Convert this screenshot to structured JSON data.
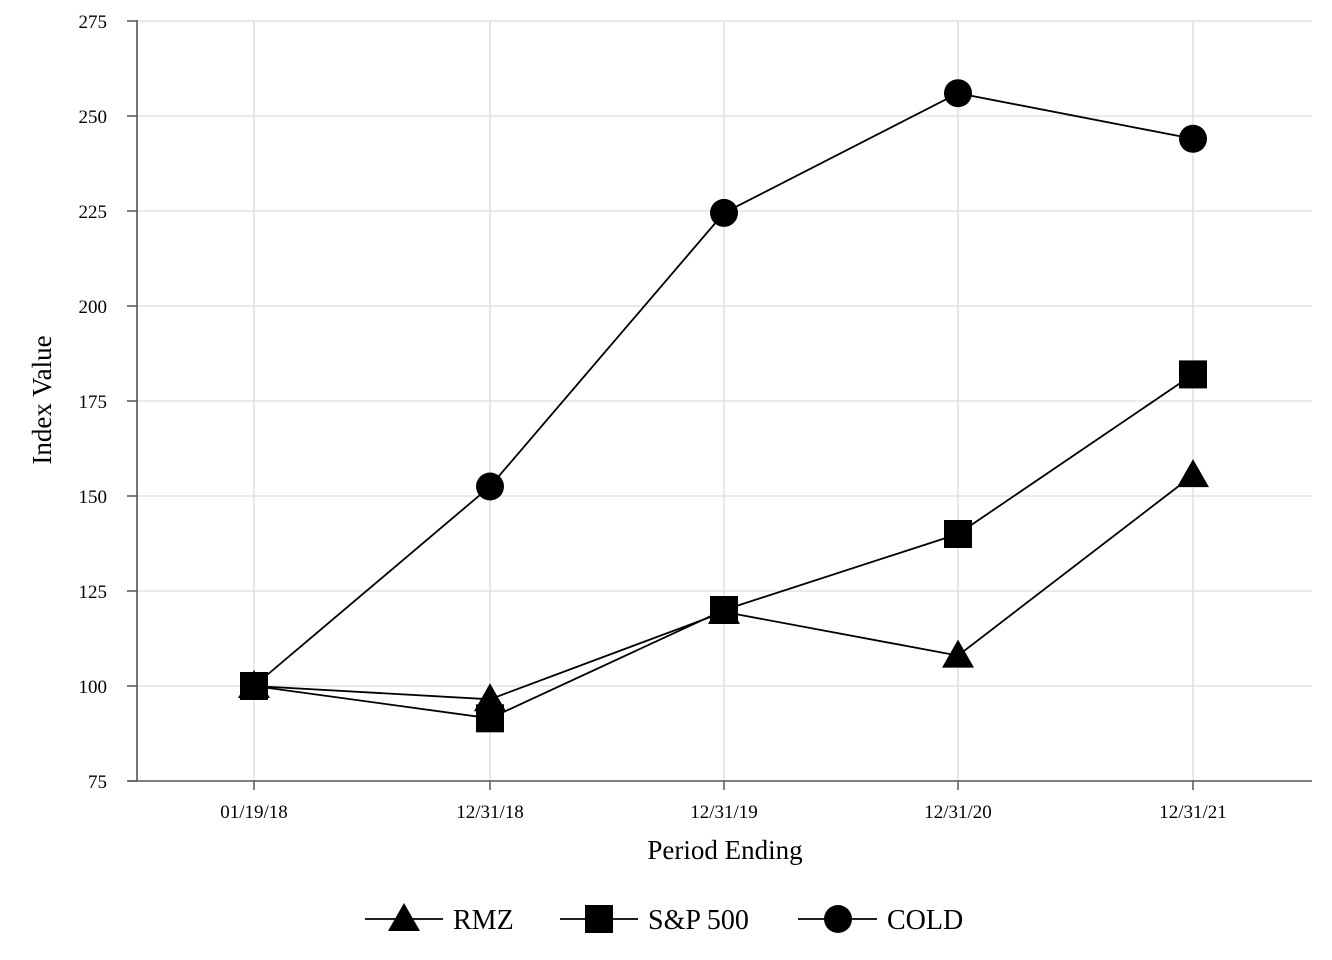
{
  "chart_data": {
    "type": "line",
    "xlabel": "Period Ending",
    "ylabel": "Index Value",
    "categories": [
      "01/19/18",
      "12/31/18",
      "12/31/19",
      "12/31/20",
      "12/31/21"
    ],
    "ylim": [
      75,
      275
    ],
    "yticks": [
      75,
      100,
      125,
      150,
      175,
      200,
      225,
      250,
      275
    ],
    "grid": true,
    "legend_position": "bottom",
    "series": [
      {
        "name": "RMZ",
        "marker": "triangle",
        "values": [
          100.0,
          96.5,
          119.5,
          108.0,
          155.5
        ]
      },
      {
        "name": "S&P 500",
        "marker": "square",
        "values": [
          100.0,
          91.5,
          120.0,
          140.0,
          182.0
        ]
      },
      {
        "name": "COLD",
        "marker": "circle",
        "values": [
          100.0,
          152.5,
          224.5,
          256.0,
          244.0
        ]
      }
    ]
  }
}
